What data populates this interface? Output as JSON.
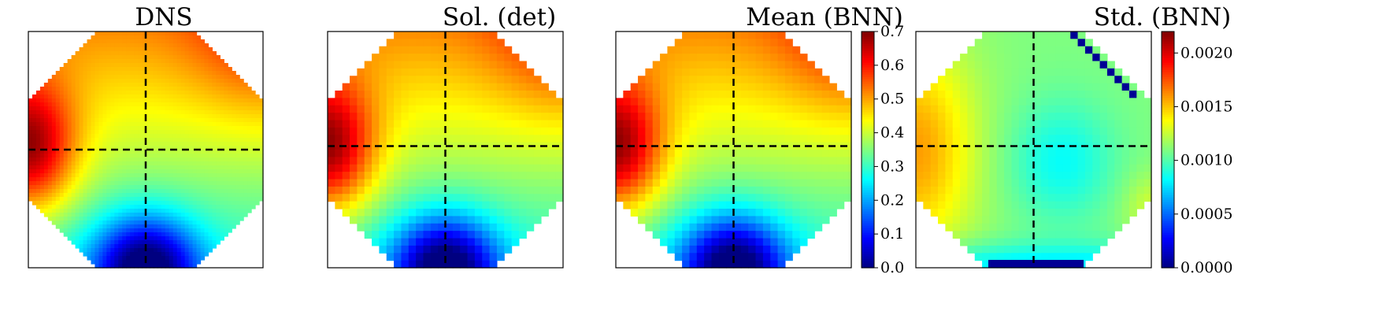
{
  "chart_data": [
    {
      "type": "heatmap",
      "title": "DNS",
      "render": "smooth",
      "domain": "octagon",
      "crosshair": "dashed",
      "colorbar": null
    },
    {
      "type": "heatmap",
      "title": "Sol. (det)",
      "render": "pixelated",
      "domain": "octagon",
      "crosshair": "dashed",
      "colorbar": null
    },
    {
      "type": "heatmap",
      "title": "Mean (BNN)",
      "render": "pixelated",
      "domain": "octagon",
      "crosshair": "dashed",
      "colorbar": {
        "range": [
          0.0,
          0.7
        ],
        "ticks": [
          0.0,
          0.1,
          0.2,
          0.3,
          0.4,
          0.5,
          0.6,
          0.7
        ],
        "tick_labels": [
          "0.0",
          "0.1",
          "0.2",
          "0.3",
          "0.4",
          "0.5",
          "0.6",
          "0.7"
        ]
      }
    },
    {
      "type": "heatmap",
      "title": "Std. (BNN)",
      "render": "pixelated",
      "domain": "octagon",
      "crosshair": "dashed",
      "colorbar": {
        "range": [
          0.0,
          0.0022
        ],
        "ticks": [
          0.0,
          0.0005,
          0.001,
          0.0015,
          0.002
        ],
        "tick_labels": [
          "0.0000",
          "0.0005",
          "0.0010",
          "0.0015",
          "0.0020"
        ]
      }
    }
  ],
  "colormap": "jet"
}
